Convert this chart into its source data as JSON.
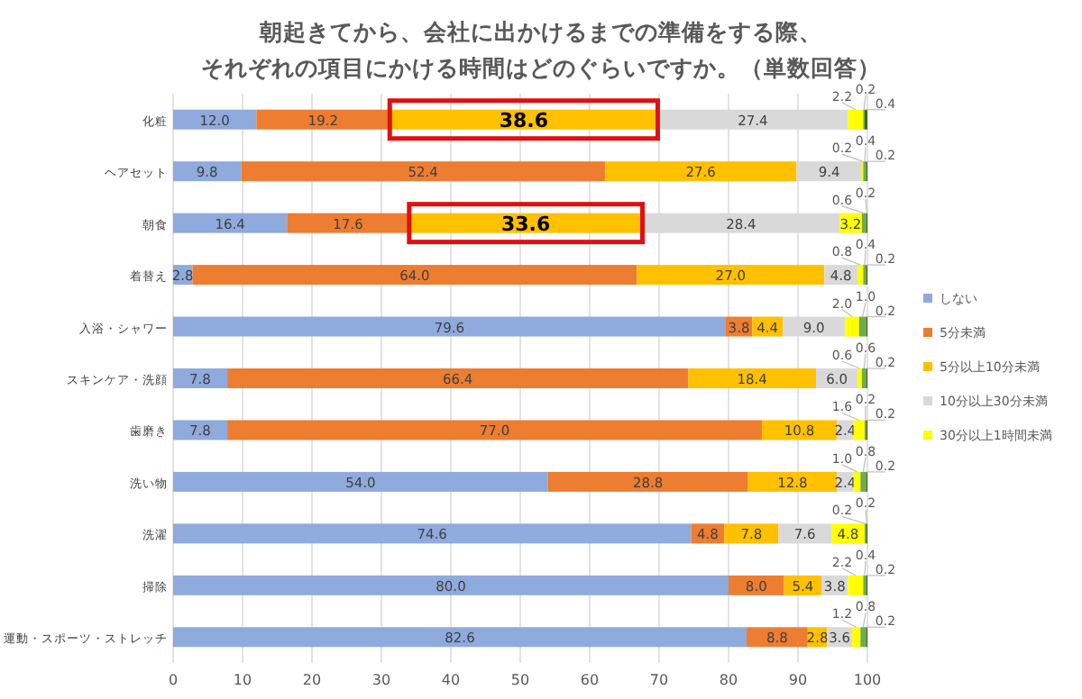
{
  "chart_data": {
    "type": "bar",
    "orientation": "horizontal",
    "stacked": true,
    "title": "朝起きてから、会社に出かけるまでの準備をする際、",
    "subtitle": "それぞれの項目にかける時間はどのぐらいですか。（単数回答）",
    "categories": [
      "化粧",
      "ヘアセット",
      "朝食",
      "着替え",
      "入浴・シャワー",
      "スキンケア・洗顔",
      "歯磨き",
      "洗い物",
      "洗濯",
      "掃除",
      "運動・スポーツ・ストレッチ"
    ],
    "series": [
      {
        "name": "しない",
        "color": "#8faadc",
        "values": [
          12.0,
          9.8,
          16.4,
          2.8,
          79.6,
          7.8,
          7.8,
          54.0,
          74.6,
          80.0,
          82.6
        ],
        "value_labels": [
          "12.0",
          "9.8",
          "16.4",
          "2.8",
          "79.6",
          "7.8",
          "7.8",
          "54.0",
          "74.6",
          "80.0",
          "82.6"
        ]
      },
      {
        "name": "5分未満",
        "color": "#ed7d31",
        "values": [
          19.2,
          52.4,
          17.6,
          64.0,
          3.8,
          66.4,
          77.0,
          28.8,
          4.8,
          8.0,
          8.8
        ],
        "value_labels": [
          "19.2",
          "52.4",
          "17.6",
          "64.0",
          "3.8",
          "66.4",
          "77.0",
          "28.8",
          "4.8",
          "8.0",
          "8.8"
        ]
      },
      {
        "name": "5分以上10分未満",
        "color": "#ffc000",
        "values": [
          38.6,
          27.6,
          33.6,
          27.0,
          4.4,
          18.4,
          10.8,
          12.8,
          7.8,
          5.4,
          2.8
        ],
        "value_labels": [
          "38.6",
          "27.6",
          "33.6",
          "27.0",
          "4.4",
          "18.4",
          "10.8",
          "12.8",
          "7.8",
          "5.4",
          "2.8"
        ]
      },
      {
        "name": "10分以上30分未満",
        "color": "#d9d9d9",
        "values": [
          27.4,
          9.4,
          28.4,
          4.8,
          9.0,
          6.0,
          2.4,
          2.4,
          7.6,
          3.8,
          3.6
        ],
        "value_labels": [
          "27.4",
          "9.4",
          "28.4",
          "4.8",
          "9.0",
          "6.0",
          "2.4",
          "2.4",
          "7.6",
          "3.8",
          "3.6"
        ]
      },
      {
        "name": "30分以上1時間未満",
        "color": "#ffff00",
        "values": [
          2.2,
          0.2,
          3.2,
          0.8,
          2.0,
          0.6,
          1.6,
          1.0,
          4.8,
          2.2,
          1.2
        ],
        "value_labels": [
          "2.2",
          "0.2",
          "3.2",
          "0.8",
          "2.0",
          "0.6",
          "1.6",
          "1.0",
          "4.8",
          "2.2",
          "1.2"
        ]
      },
      {
        "color": "#70ad47",
        "values": [
          0.2,
          0.4,
          0.6,
          0.4,
          1.0,
          0.6,
          0.2,
          0.8,
          0.2,
          0.4,
          0.8
        ],
        "value_labels": [
          "0.2",
          "0.4",
          "0.6",
          "0.4",
          "1.0",
          "0.6",
          "0.2",
          "0.8",
          "0.2",
          "0.4",
          "0.8"
        ]
      },
      {
        "color": "#3a6b22",
        "values": [
          0.4,
          0.2,
          0.2,
          0.2,
          0.2,
          0.2,
          0.2,
          0.2,
          0.2,
          0.2,
          0.2
        ],
        "value_labels": [
          "0.4",
          "0.2",
          "0.2",
          "0.2",
          "0.2",
          "0.2",
          "0.2",
          "0.2",
          "0.2",
          "0.2",
          "0.2"
        ]
      }
    ],
    "xlim": [
      0,
      100
    ],
    "xticks": [
      0,
      10,
      20,
      30,
      40,
      50,
      60,
      70,
      80,
      90,
      100
    ],
    "grid": "x",
    "legend": "right"
  }
}
